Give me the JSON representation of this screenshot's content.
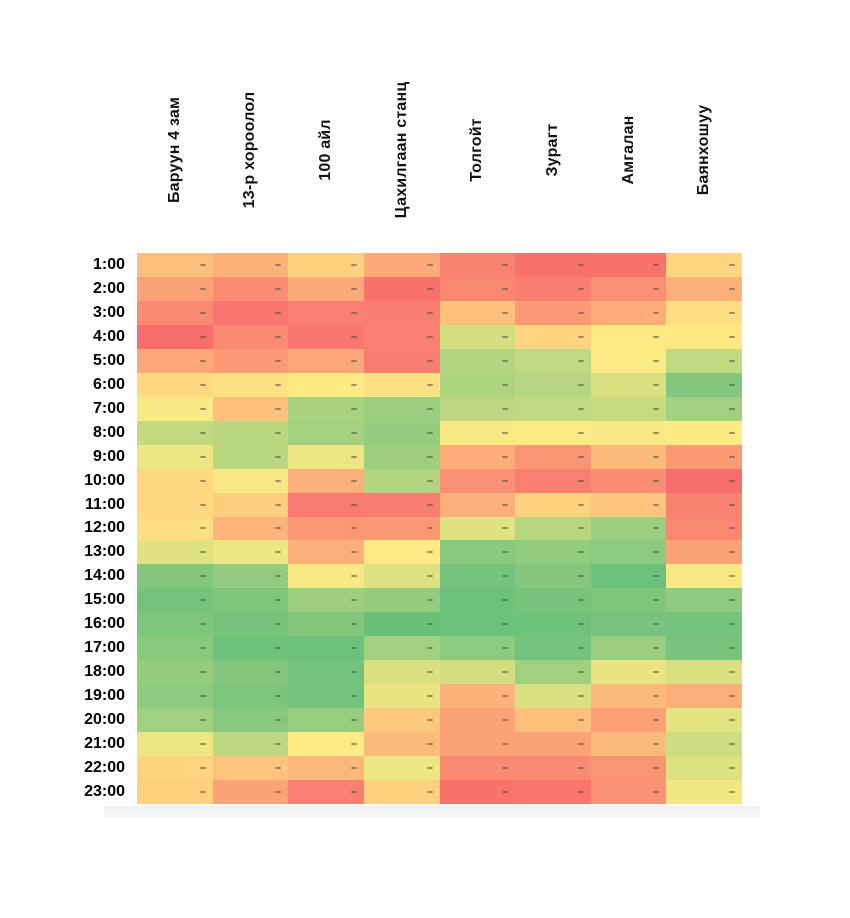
{
  "page": {
    "background": "#ffffff"
  },
  "chart_data": {
    "type": "heatmap",
    "title": "",
    "columns": [
      "Баруун 4 зам",
      "13-р хороолол",
      "100 айл",
      "Цахилгаан станц",
      "Толгойт",
      "Зурагт",
      "Амгалан",
      "Баянхошуу"
    ],
    "rows": [
      "1:00",
      "2:00",
      "3:00",
      "4:00",
      "5:00",
      "6:00",
      "7:00",
      "8:00",
      "9:00",
      "10:00",
      "11:00",
      "12:00",
      "13:00",
      "14:00",
      "15:00",
      "16:00",
      "17:00",
      "18:00",
      "19:00",
      "20:00",
      "21:00",
      "22:00",
      "23:00"
    ],
    "values": [
      [
        33,
        28,
        40,
        25,
        10,
        3,
        4,
        42
      ],
      [
        22,
        14,
        25,
        3,
        12,
        8,
        15,
        27
      ],
      [
        13,
        5,
        9,
        8,
        34,
        19,
        26,
        45
      ],
      [
        2,
        13,
        5,
        9,
        64,
        41,
        51,
        49
      ],
      [
        24,
        19,
        24,
        8,
        74,
        70,
        51,
        70
      ],
      [
        43,
        46,
        50,
        46,
        76,
        73,
        62,
        90
      ],
      [
        52,
        34,
        78,
        82,
        71,
        70,
        68,
        80
      ],
      [
        69,
        72,
        79,
        84,
        52,
        51,
        52,
        50
      ],
      [
        56,
        72,
        56,
        81,
        26,
        17,
        31,
        19
      ],
      [
        43,
        52,
        27,
        75,
        15,
        9,
        14,
        2
      ],
      [
        43,
        39,
        7,
        8,
        27,
        40,
        35,
        10
      ],
      [
        45,
        29,
        18,
        18,
        60,
        73,
        82,
        12
      ],
      [
        60,
        56,
        27,
        50,
        88,
        85,
        87,
        22
      ],
      [
        90,
        85,
        52,
        61,
        95,
        89,
        97,
        52
      ],
      [
        95,
        91,
        81,
        84,
        97,
        94,
        91,
        86
      ],
      [
        92,
        94,
        90,
        98,
        97,
        96,
        93,
        95
      ],
      [
        88,
        96,
        97,
        80,
        87,
        95,
        82,
        93
      ],
      [
        84,
        90,
        95,
        62,
        64,
        80,
        57,
        62
      ],
      [
        86,
        92,
        95,
        57,
        28,
        62,
        31,
        27
      ],
      [
        80,
        88,
        83,
        37,
        22,
        33,
        21,
        59
      ],
      [
        56,
        71,
        50,
        31,
        22,
        22,
        31,
        66
      ],
      [
        41,
        35,
        30,
        56,
        13,
        13,
        17,
        61
      ],
      [
        40,
        22,
        9,
        40,
        4,
        5,
        16,
        54
      ]
    ],
    "value_scale": {
      "min": 0,
      "max": 100,
      "colormap": [
        "#f8696b",
        "#ffeb84",
        "#63be7b"
      ]
    },
    "legend": "none",
    "grid_lines": "off",
    "cell_marks": "tiny dark dash at right edge of every cell"
  }
}
